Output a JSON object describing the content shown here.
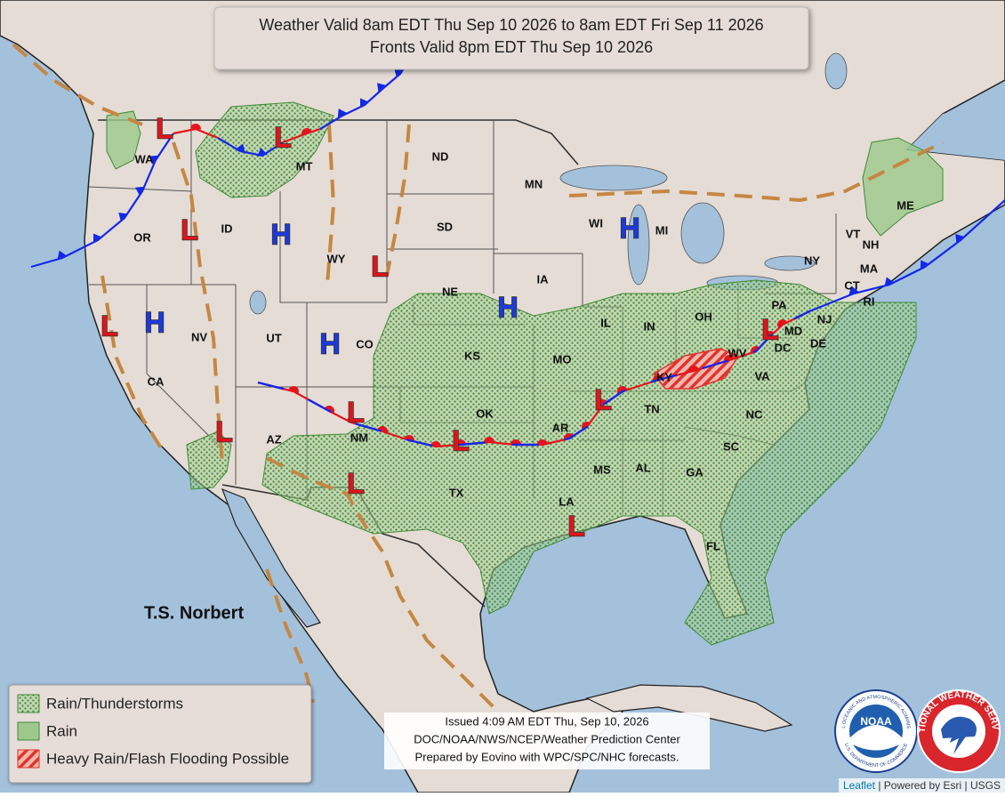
{
  "header": {
    "line1": "Weather Valid 8am EDT Thu Sep 10 2026 to 8am EDT Fri Sep 11 2026",
    "line2": "Fronts Valid 8pm EDT Thu Sep 10 2026"
  },
  "states": [
    "WA",
    "OR",
    "CA",
    "NV",
    "ID",
    "MT",
    "WY",
    "UT",
    "AZ",
    "CO",
    "NM",
    "ND",
    "SD",
    "NE",
    "KS",
    "OK",
    "TX",
    "MN",
    "IA",
    "MO",
    "AR",
    "LA",
    "WI",
    "IL",
    "MI",
    "IN",
    "OH",
    "KY",
    "TN",
    "MS",
    "AL",
    "GA",
    "FL",
    "SC",
    "NC",
    "VA",
    "WV",
    "PA",
    "NY",
    "VT",
    "NH",
    "ME",
    "MA",
    "CT",
    "RI",
    "NJ",
    "DE",
    "MD",
    "DC"
  ],
  "pressure_centers": [
    "L",
    "L",
    "L",
    "L",
    "L",
    "L",
    "L",
    "L",
    "L",
    "L",
    "L",
    "L",
    "H",
    "H",
    "H",
    "H",
    "H"
  ],
  "storm": "T.S. Norbert",
  "legend": [
    "Rain/Thunderstorms",
    "Rain",
    "Heavy Rain/Flash Flooding Possible"
  ],
  "issued": [
    "Issued  4:09 AM EDT  Thu, Sep 10, 2026",
    "DOC/NOAA/NWS/NCEP/Weather Prediction Center",
    "Prepared by Eovino with WPC/SPC/NHC forecasts."
  ],
  "logos": {
    "noaa": "NOAA",
    "noaa_ring": "NATIONAL OCEANIC AND ATMOSPHERIC ADMINISTRATION",
    "noaa_ring_bottom": "U.S. DEPARTMENT OF COMMERCE",
    "nws": "NATIONAL WEATHER SERVICE"
  },
  "attribution": {
    "leaflet": "Leaflet",
    "separator": "|",
    "esri": "Powered by Esri",
    "usgs": "USGS"
  }
}
